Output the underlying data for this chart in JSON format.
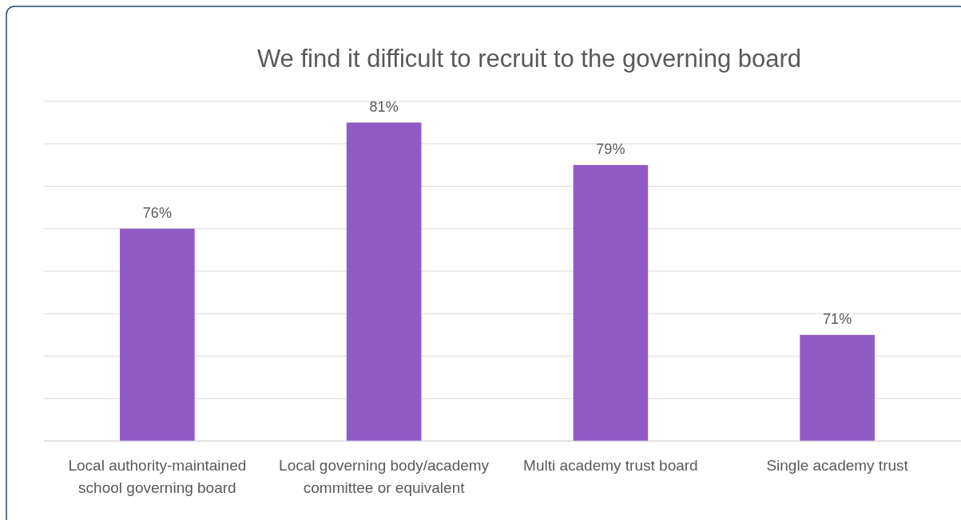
{
  "chart_data": {
    "type": "bar",
    "title": "We find it difficult to recruit to the governing board",
    "categories": [
      "Local authority-maintained school governing board",
      "Local governing body/academy committee or equivalent",
      "Multi academy trust board",
      "Single academy trust"
    ],
    "values": [
      76,
      81,
      79,
      71
    ],
    "value_labels": [
      "76%",
      "81%",
      "79%",
      "71%"
    ],
    "color": "#915bc6",
    "ylim": [
      66,
      82
    ],
    "yticks": [
      {
        "value": 66,
        "label": null
      },
      {
        "value": 68,
        "label": null
      },
      {
        "value": 70,
        "label": null
      },
      {
        "value": 72,
        "label": null
      },
      {
        "value": 74,
        "label": null
      },
      {
        "value": 76,
        "label": null
      },
      {
        "value": 78,
        "label": null
      },
      {
        "value": 80,
        "label": null
      },
      {
        "value": 82,
        "label": null
      }
    ],
    "tick_labels": "x",
    "grid": "y"
  }
}
